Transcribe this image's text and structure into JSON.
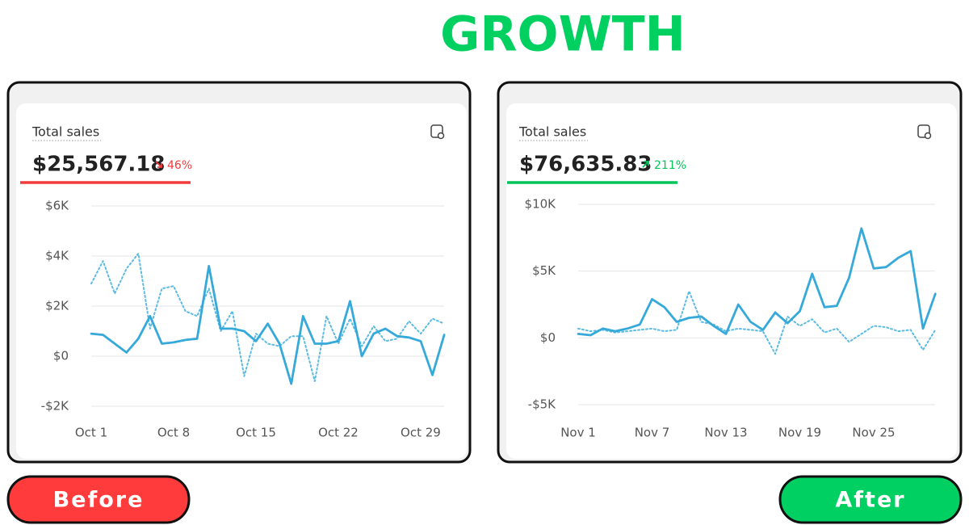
{
  "headline": "GROWTH",
  "chart_data": [
    {
      "type": "line",
      "title": "Total sales",
      "total": "$25,567.18",
      "change": "46%",
      "trend": "down",
      "accent": "#f23b3b",
      "badge": "Before",
      "categories": [
        "Oct 1",
        null,
        null,
        null,
        null,
        null,
        null,
        "Oct 8",
        null,
        null,
        null,
        null,
        null,
        null,
        "Oct 15",
        null,
        null,
        null,
        null,
        null,
        null,
        "Oct 22",
        null,
        null,
        null,
        null,
        null,
        null,
        "Oct 29",
        null,
        null
      ],
      "series": [
        {
          "color": "#35a9d9",
          "dashed": false,
          "values": [
            900,
            850,
            500,
            150,
            700,
            1600,
            500,
            550,
            650,
            700,
            3600,
            1100,
            1100,
            1000,
            600,
            1300,
            500,
            -1100,
            1600,
            500,
            500,
            600,
            2200,
            0,
            900,
            1100,
            800,
            750,
            600,
            -750,
            850
          ]
        },
        {
          "color": "#5cbbe3",
          "dashed": true,
          "values": [
            2900,
            3800,
            2500,
            3500,
            4100,
            1100,
            2700,
            2800,
            1800,
            1600,
            2700,
            1000,
            1800,
            -800,
            900,
            500,
            400,
            800,
            800,
            -1000,
            1600,
            500,
            1500,
            400,
            1200,
            600,
            700,
            1400,
            900,
            1500,
            1300
          ]
        }
      ],
      "ylim": [
        -2000,
        6000
      ],
      "yticks": [
        {
          "value": -2000,
          "label": "-$2K"
        },
        {
          "value": 0,
          "label": "$0"
        },
        {
          "value": 2000,
          "label": "$2K"
        },
        {
          "value": 4000,
          "label": "$4K"
        },
        {
          "value": 6000,
          "label": "$6K"
        }
      ],
      "grid": true
    },
    {
      "type": "line",
      "title": "Total sales",
      "total": "$76,635.83",
      "change": "211%",
      "trend": "up",
      "accent": "#00c45a",
      "badge": "After",
      "categories": [
        "Nov 1",
        null,
        null,
        null,
        null,
        null,
        "Nov 7",
        null,
        null,
        null,
        null,
        null,
        "Nov 13",
        null,
        null,
        null,
        null,
        null,
        "Nov 19",
        null,
        null,
        null,
        null,
        null,
        "Nov 25",
        null,
        null,
        null,
        null,
        null
      ],
      "series": [
        {
          "color": "#35a9d9",
          "dashed": false,
          "values": [
            300,
            200,
            700,
            500,
            700,
            1000,
            2900,
            2300,
            1200,
            1500,
            1600,
            900,
            300,
            2500,
            1200,
            600,
            1900,
            1100,
            2000,
            4800,
            2300,
            2400,
            4500,
            8200,
            5200,
            5300,
            6000,
            6500,
            700,
            3300
          ]
        },
        {
          "color": "#5cbbe3",
          "dashed": true,
          "values": [
            700,
            500,
            600,
            400,
            500,
            600,
            700,
            500,
            600,
            3500,
            1200,
            1000,
            500,
            700,
            600,
            500,
            -1200,
            1600,
            900,
            1400,
            400,
            700,
            -300,
            300,
            900,
            800,
            500,
            600,
            -900,
            600
          ]
        }
      ],
      "ylim": [
        -5000,
        10000
      ],
      "yticks": [
        {
          "value": -5000,
          "label": "-$5K"
        },
        {
          "value": 0,
          "label": "$0"
        },
        {
          "value": 5000,
          "label": "$5K"
        },
        {
          "value": 10000,
          "label": "$10K"
        }
      ],
      "grid": true
    }
  ]
}
